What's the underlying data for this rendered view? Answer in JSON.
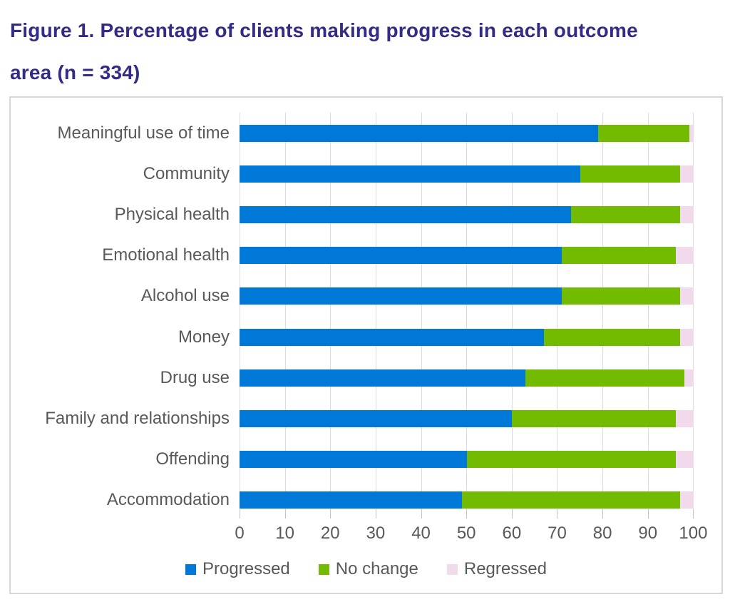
{
  "title": {
    "line1": "Figure 1. Percentage of clients making progress in each outcome",
    "line2": "area (n = 334)",
    "color": "#322c86"
  },
  "colors": {
    "progressed": "#0078d7",
    "no_change": "#72bb00",
    "regressed": "#f1daec",
    "axis_text": "#595959",
    "gridline": "#dcdcdc"
  },
  "chart_data": {
    "type": "bar",
    "orientation": "horizontal-stacked",
    "title": "Figure 1. Percentage of clients making progress in each outcome area (n = 334)",
    "categories": [
      "Meaningful use of time",
      "Community",
      "Physical health",
      "Emotional health",
      "Alcohol use",
      "Money",
      "Drug use",
      "Family and relationships",
      "Offending",
      "Accommodation"
    ],
    "series": [
      {
        "name": "Progressed",
        "color": "#0078d7",
        "values": [
          79,
          75,
          73,
          71,
          71,
          67,
          63,
          60,
          50,
          49
        ]
      },
      {
        "name": "No change",
        "color": "#72bb00",
        "values": [
          20,
          22,
          24,
          25,
          26,
          30,
          35,
          36,
          46,
          48
        ]
      },
      {
        "name": "Regressed",
        "color": "#f1daec",
        "values": [
          1,
          3,
          3,
          4,
          3,
          3,
          2,
          4,
          4,
          3
        ]
      }
    ],
    "xlabel": "",
    "ylabel": "",
    "xlim": [
      0,
      100
    ],
    "x_ticks": [
      "0",
      "10",
      "20",
      "30",
      "40",
      "50",
      "60",
      "70",
      "80",
      "90",
      "100"
    ],
    "grid": true,
    "legend_position": "bottom"
  }
}
